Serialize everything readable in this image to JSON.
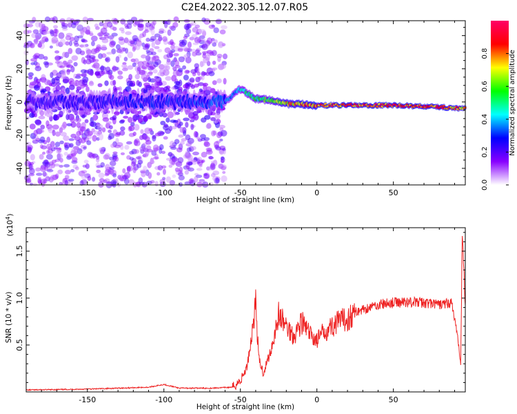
{
  "title": "C2E4.2022.305.12.07.R05",
  "chart_data": [
    {
      "type": "heatmap",
      "title": "C2E4.2022.305.12.07.R05",
      "xlabel": "Height of straight line (km)",
      "ylabel": "Frequency (Hz)",
      "xlim": [
        -190,
        97
      ],
      "ylim": [
        -50,
        49
      ],
      "x_ticks": [
        -150,
        -100,
        -50,
        0,
        50
      ],
      "y_ticks": [
        -40,
        -20,
        0,
        20,
        40
      ],
      "colorbar": {
        "label": "Normalized spectral amplitude",
        "range": [
          0,
          1
        ],
        "ticks": [
          "0.0",
          "0.2",
          "0.4",
          "0.6",
          "0.8"
        ],
        "colors": [
          "#ffffff",
          "#8800ff",
          "#0000ff",
          "#00ffff",
          "#00ff00",
          "#ffff00",
          "#ff0000",
          "#ff0066"
        ]
      },
      "ridge": [
        {
          "x": -190,
          "f": 0,
          "amp": 0.25
        },
        {
          "x": -100,
          "f": 0,
          "amp": 0.3
        },
        {
          "x": -60,
          "f": 0,
          "amp": 0.35
        },
        {
          "x": -50,
          "f": 8,
          "amp": 0.45
        },
        {
          "x": -45,
          "f": 5,
          "amp": 0.55
        },
        {
          "x": -40,
          "f": 2,
          "amp": 0.6
        },
        {
          "x": -30,
          "f": 1,
          "amp": 0.65
        },
        {
          "x": -20,
          "f": -1,
          "amp": 0.8
        },
        {
          "x": 0,
          "f": -2,
          "amp": 0.9
        },
        {
          "x": 50,
          "f": -2,
          "amp": 0.95
        },
        {
          "x": 80,
          "f": -3,
          "amp": 0.9
        },
        {
          "x": 95,
          "f": -4,
          "amp": 0.85
        }
      ]
    },
    {
      "type": "line",
      "xlabel": "Height of straight line (km)",
      "ylabel": "SNR (10 * v/v)",
      "y_multiplier": "(x10",
      "y_multiplier_exp": "4",
      "xlim": [
        -190,
        97
      ],
      "ylim": [
        0,
        1.75
      ],
      "x_ticks": [
        -150,
        -100,
        -50,
        0,
        50
      ],
      "y_ticks": [
        0.5,
        1.0,
        1.5
      ],
      "y_tick_labels": [
        "0.5",
        "1.0",
        "1.5"
      ],
      "series": [
        {
          "color": "#ee2222",
          "points": [
            [
              -190,
              0.02
            ],
            [
              -150,
              0.03
            ],
            [
              -110,
              0.05
            ],
            [
              -100,
              0.08
            ],
            [
              -90,
              0.04
            ],
            [
              -70,
              0.04
            ],
            [
              -55,
              0.05
            ],
            [
              -50,
              0.12
            ],
            [
              -46,
              0.25
            ],
            [
              -43,
              0.55
            ],
            [
              -40,
              0.96
            ],
            [
              -38,
              0.35
            ],
            [
              -35,
              0.2
            ],
            [
              -30,
              0.45
            ],
            [
              -25,
              0.82
            ],
            [
              -20,
              0.7
            ],
            [
              -15,
              0.6
            ],
            [
              -10,
              0.75
            ],
            [
              -5,
              0.62
            ],
            [
              0,
              0.55
            ],
            [
              5,
              0.65
            ],
            [
              10,
              0.7
            ],
            [
              15,
              0.75
            ],
            [
              20,
              0.78
            ],
            [
              25,
              0.85
            ],
            [
              30,
              0.88
            ],
            [
              40,
              0.93
            ],
            [
              50,
              0.95
            ],
            [
              60,
              0.96
            ],
            [
              70,
              0.95
            ],
            [
              80,
              0.93
            ],
            [
              88,
              0.95
            ],
            [
              92,
              0.6
            ],
            [
              94,
              0.28
            ],
            [
              95,
              1.75
            ],
            [
              97,
              0.92
            ]
          ]
        }
      ]
    }
  ]
}
